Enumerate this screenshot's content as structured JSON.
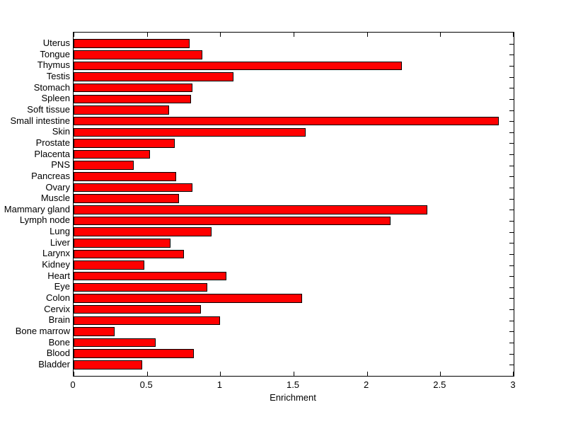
{
  "figure": {
    "background_color": "#ffffff",
    "axes_border_color": "#000000"
  },
  "chart_data": {
    "type": "bar",
    "orientation": "horizontal",
    "title": "",
    "xlabel": "Enrichment",
    "ylabel": "",
    "xlim": [
      0,
      3
    ],
    "x_tick_labels": [
      "0",
      "0.5",
      "1",
      "1.5",
      "2",
      "2.5",
      "3"
    ],
    "grid": false,
    "legend": null,
    "bar_color": "#ff0000",
    "bar_edge_color": "#000000",
    "categories": [
      "Uterus",
      "Tongue",
      "Thymus",
      "Testis",
      "Stomach",
      "Spleen",
      "Soft tissue",
      "Small intestine",
      "Skin",
      "Prostate",
      "Placenta",
      "PNS",
      "Pancreas",
      "Ovary",
      "Muscle",
      "Mammary gland",
      "Lymph node",
      "Lung",
      "Liver",
      "Larynx",
      "Kidney",
      "Heart",
      "Eye",
      "Colon",
      "Cervix",
      "Brain",
      "Bone marrow",
      "Bone",
      "Blood",
      "Bladder"
    ],
    "values": [
      0.79,
      0.88,
      2.24,
      1.09,
      0.81,
      0.8,
      0.65,
      2.9,
      1.58,
      0.69,
      0.52,
      0.41,
      0.7,
      0.81,
      0.72,
      2.41,
      2.16,
      0.94,
      0.66,
      0.75,
      0.48,
      1.04,
      0.91,
      1.56,
      0.87,
      1.0,
      0.28,
      0.56,
      0.82,
      0.47
    ]
  }
}
